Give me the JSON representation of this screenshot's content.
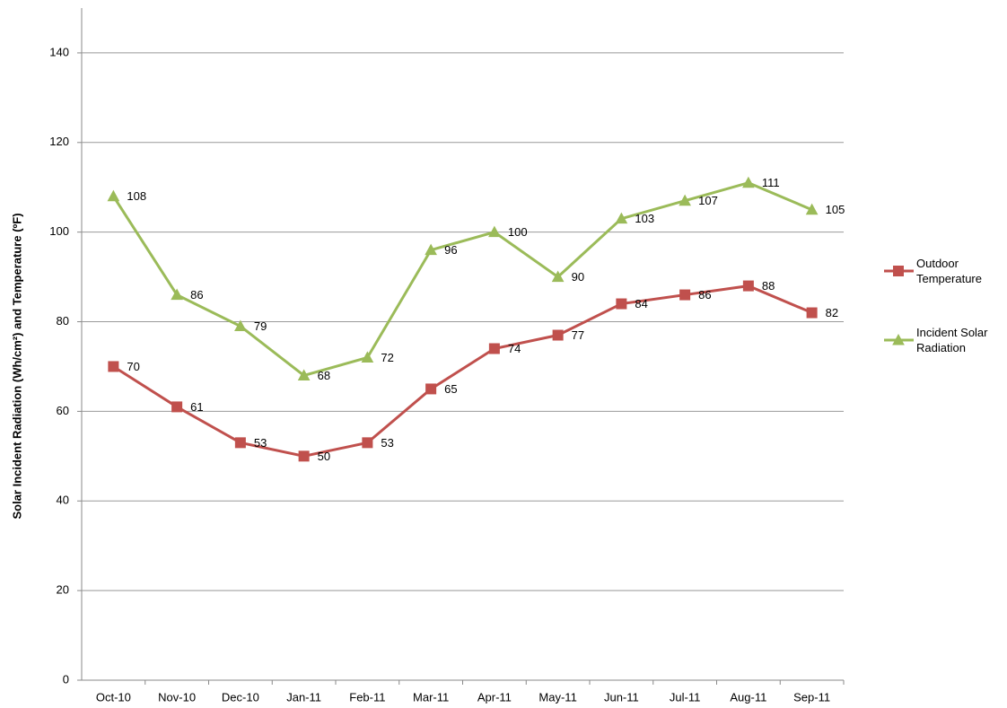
{
  "chart_data": {
    "type": "line",
    "y_label": "Solar Incident Radiation  (Wh/cm²) and Temperature  (ºF)",
    "categories": [
      "Oct-10",
      "Nov-10",
      "Dec-10",
      "Jan-11",
      "Feb-11",
      "Mar-11",
      "Apr-11",
      "May-11",
      "Jun-11",
      "Jul-11",
      "Aug-11",
      "Sep-11"
    ],
    "series": [
      {
        "name": "Outdoor Temperature",
        "color": "#c0504d",
        "marker": "square",
        "values": [
          70,
          61,
          53,
          50,
          53,
          65,
          74,
          77,
          84,
          86,
          88,
          82
        ]
      },
      {
        "name": "Incident Solar Radiation",
        "color": "#9bbb59",
        "marker": "triangle",
        "values": [
          108,
          86,
          79,
          68,
          72,
          96,
          100,
          90,
          103,
          107,
          111,
          105
        ]
      }
    ],
    "ylim": [
      0,
      150
    ],
    "yticks": [
      0,
      20,
      40,
      60,
      80,
      100,
      120,
      140
    ],
    "grid": true,
    "legend": "right"
  }
}
